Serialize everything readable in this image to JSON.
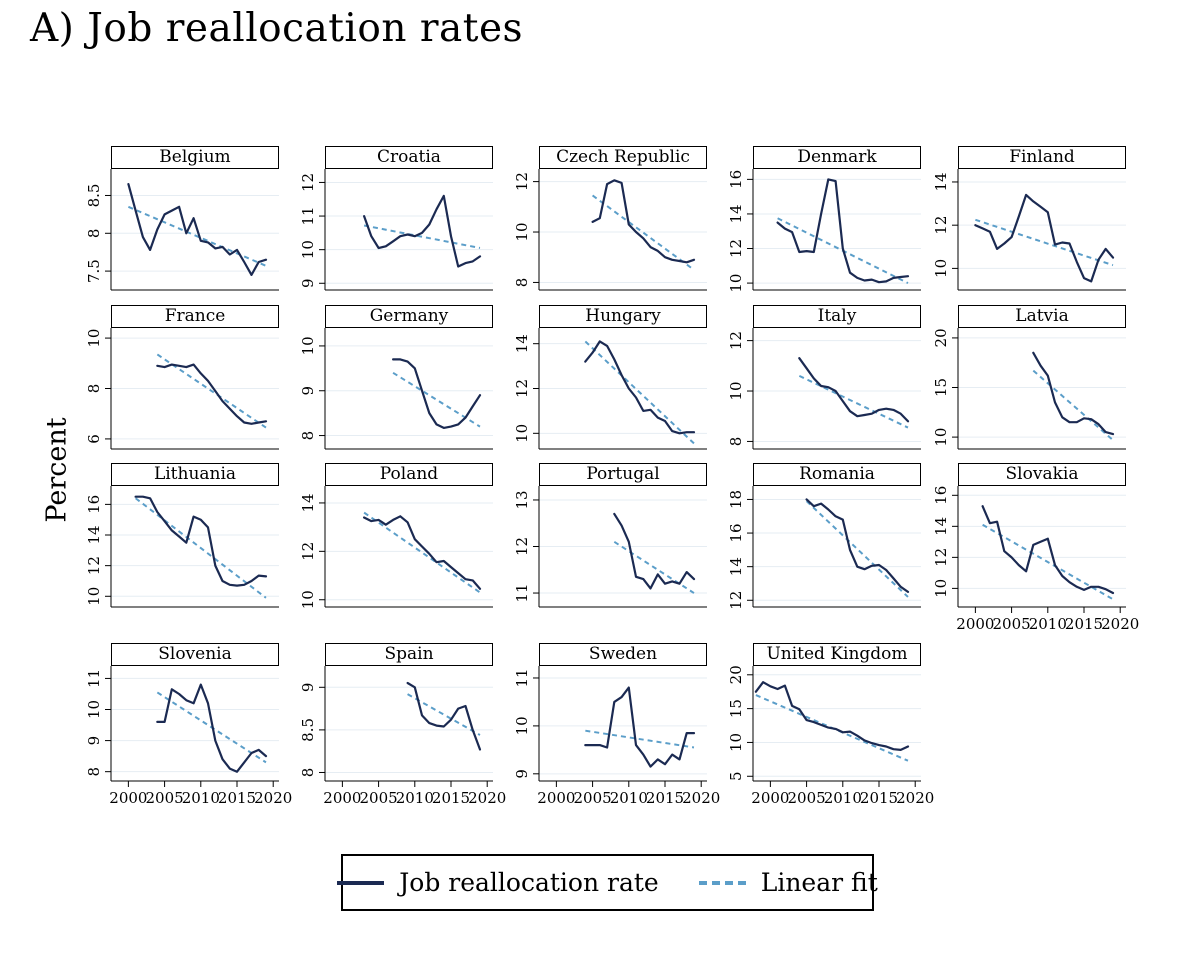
{
  "figure": {
    "title": "A) Job reallocation rates",
    "y_axis_label": "Percent"
  },
  "legend": {
    "items": [
      {
        "label": "Job reallocation rate",
        "style": "solid",
        "color": "#1b2a52"
      },
      {
        "label": "Linear fit",
        "style": "dashed",
        "color": "#5b9ec9"
      }
    ]
  },
  "colors": {
    "series": "#1b2a52",
    "trend": "#5b9ec9",
    "grid": "#e6edf3",
    "axis": "#000000"
  },
  "axes": {
    "x_ticks": [
      2000,
      2005,
      2010,
      2015,
      2020
    ],
    "x_range": [
      1997.6,
      2020.8
    ]
  },
  "chart_data": [
    {
      "type": "line",
      "title": "Belgium",
      "start_year": 2000,
      "yticks": [
        7.5,
        8,
        8.5
      ],
      "ylim": [
        7.25,
        8.85
      ],
      "x_axis_labels": false,
      "values": [
        8.65,
        8.3,
        7.95,
        7.78,
        8.05,
        8.25,
        8.3,
        8.35,
        8.0,
        8.2,
        7.9,
        7.88,
        7.8,
        7.82,
        7.72,
        7.78,
        7.62,
        7.45,
        7.62,
        7.65
      ],
      "trend": [
        8.35,
        7.57
      ]
    },
    {
      "type": "line",
      "title": "Croatia",
      "start_year": 2003,
      "yticks": [
        9,
        10,
        11,
        12
      ],
      "ylim": [
        8.8,
        12.4
      ],
      "x_axis_labels": false,
      "values": [
        11.0,
        10.4,
        10.05,
        10.1,
        10.25,
        10.4,
        10.45,
        10.4,
        10.5,
        10.75,
        11.2,
        11.6,
        10.4,
        9.5,
        9.6,
        9.65,
        9.8
      ],
      "trend": [
        10.72,
        10.05
      ]
    },
    {
      "type": "line",
      "title": "Czech Republic",
      "start_year": 2005,
      "yticks": [
        8,
        10,
        12
      ],
      "ylim": [
        7.7,
        12.5
      ],
      "x_axis_labels": false,
      "values": [
        10.4,
        10.55,
        11.9,
        12.05,
        11.95,
        10.3,
        10.0,
        9.75,
        9.4,
        9.25,
        9.0,
        8.9,
        8.85,
        8.8,
        8.9
      ],
      "trend": [
        11.45,
        8.5
      ]
    },
    {
      "type": "line",
      "title": "Denmark",
      "start_year": 2001,
      "yticks": [
        10,
        12,
        14,
        16
      ],
      "ylim": [
        9.6,
        16.6
      ],
      "x_axis_labels": false,
      "values": [
        13.5,
        13.15,
        12.95,
        11.8,
        11.85,
        11.8,
        14.0,
        16.0,
        15.9,
        12.0,
        10.6,
        10.3,
        10.15,
        10.2,
        10.05,
        10.1,
        10.3,
        10.35,
        10.4
      ],
      "trend": [
        13.75,
        10.0
      ]
    },
    {
      "type": "line",
      "title": "Finland",
      "start_year": 2000,
      "yticks": [
        10,
        12,
        14
      ],
      "ylim": [
        9.0,
        14.6
      ],
      "x_axis_labels": false,
      "values": [
        12.0,
        11.85,
        11.7,
        10.9,
        11.15,
        11.45,
        12.4,
        13.4,
        13.1,
        12.85,
        12.6,
        11.1,
        11.2,
        11.15,
        10.3,
        9.55,
        9.4,
        10.4,
        10.9,
        10.5
      ],
      "trend": [
        12.25,
        10.15
      ]
    },
    {
      "type": "line",
      "title": "France",
      "start_year": 2004,
      "yticks": [
        6,
        8,
        10
      ],
      "ylim": [
        5.6,
        10.4
      ],
      "x_axis_labels": false,
      "values": [
        8.9,
        8.85,
        8.95,
        8.9,
        8.85,
        8.95,
        8.6,
        8.3,
        7.9,
        7.5,
        7.2,
        6.9,
        6.65,
        6.6,
        6.65,
        6.7
      ],
      "trend": [
        9.35,
        6.45
      ]
    },
    {
      "type": "line",
      "title": "Germany",
      "start_year": 2007,
      "yticks": [
        8,
        9,
        10
      ],
      "ylim": [
        7.7,
        10.4
      ],
      "x_axis_labels": false,
      "values": [
        9.7,
        9.7,
        9.65,
        9.5,
        9.0,
        8.5,
        8.25,
        8.17,
        8.2,
        8.25,
        8.4,
        8.65,
        8.9
      ],
      "trend": [
        9.4,
        8.2
      ]
    },
    {
      "type": "line",
      "title": "Hungary",
      "start_year": 2004,
      "yticks": [
        10,
        12,
        14
      ],
      "ylim": [
        9.3,
        14.7
      ],
      "x_axis_labels": false,
      "values": [
        13.2,
        13.6,
        14.1,
        13.9,
        13.3,
        12.6,
        12.0,
        11.6,
        11.0,
        11.05,
        10.7,
        10.55,
        10.1,
        10.0,
        10.05,
        10.05
      ],
      "trend": [
        14.1,
        9.55
      ]
    },
    {
      "type": "line",
      "title": "Italy",
      "start_year": 2004,
      "yticks": [
        8,
        10,
        12
      ],
      "ylim": [
        7.7,
        12.5
      ],
      "x_axis_labels": false,
      "values": [
        11.3,
        10.9,
        10.5,
        10.2,
        10.15,
        10.0,
        9.6,
        9.2,
        9.0,
        9.05,
        9.1,
        9.25,
        9.3,
        9.25,
        9.1,
        8.8
      ],
      "trend": [
        10.6,
        8.55
      ]
    },
    {
      "type": "line",
      "title": "Latvia",
      "start_year": 2008,
      "yticks": [
        10,
        15,
        20
      ],
      "ylim": [
        8.8,
        21.0
      ],
      "x_axis_labels": false,
      "values": [
        18.5,
        17.2,
        16.2,
        13.5,
        12.0,
        11.5,
        11.5,
        11.9,
        11.8,
        11.3,
        10.5,
        10.3
      ],
      "trend": [
        16.7,
        9.7
      ]
    },
    {
      "type": "line",
      "title": "Lithuania",
      "start_year": 2001,
      "yticks": [
        10,
        12,
        14,
        16
      ],
      "ylim": [
        9.3,
        17.2
      ],
      "x_axis_labels": false,
      "values": [
        16.5,
        16.5,
        16.4,
        15.5,
        14.9,
        14.3,
        13.9,
        13.5,
        15.2,
        15.0,
        14.5,
        12.0,
        11.0,
        10.75,
        10.7,
        10.75,
        11.0,
        11.35,
        11.3
      ],
      "trend": [
        16.4,
        9.9
      ]
    },
    {
      "type": "line",
      "title": "Poland",
      "start_year": 2003,
      "yticks": [
        10,
        12,
        14
      ],
      "ylim": [
        9.7,
        14.7
      ],
      "x_axis_labels": false,
      "values": [
        13.4,
        13.25,
        13.3,
        13.1,
        13.3,
        13.45,
        13.2,
        12.5,
        12.2,
        11.9,
        11.55,
        11.6,
        11.35,
        11.1,
        10.85,
        10.8,
        10.45
      ],
      "trend": [
        13.6,
        10.3
      ]
    },
    {
      "type": "line",
      "title": "Portugal",
      "start_year": 2008,
      "yticks": [
        11,
        12,
        13
      ],
      "ylim": [
        10.7,
        13.3
      ],
      "x_axis_labels": false,
      "values": [
        12.7,
        12.45,
        12.1,
        11.35,
        11.3,
        11.1,
        11.4,
        11.2,
        11.25,
        11.2,
        11.45,
        11.3
      ],
      "trend": [
        12.1,
        11.0
      ]
    },
    {
      "type": "line",
      "title": "Romania",
      "start_year": 2005,
      "yticks": [
        12,
        14,
        16,
        18
      ],
      "ylim": [
        11.6,
        18.8
      ],
      "x_axis_labels": false,
      "values": [
        18.0,
        17.6,
        17.75,
        17.4,
        17.0,
        16.8,
        15.0,
        14.0,
        13.85,
        14.05,
        14.1,
        13.8,
        13.3,
        12.8,
        12.5
      ],
      "trend": [
        17.9,
        12.2
      ]
    },
    {
      "type": "line",
      "title": "Slovakia",
      "start_year": 2001,
      "yticks": [
        10,
        12,
        14,
        16
      ],
      "ylim": [
        8.8,
        16.6
      ],
      "x_axis_labels": true,
      "values": [
        15.3,
        14.2,
        14.3,
        12.4,
        12.0,
        11.5,
        11.1,
        12.8,
        13.0,
        13.2,
        11.5,
        10.8,
        10.4,
        10.1,
        9.9,
        10.1,
        10.1,
        9.95,
        9.7
      ],
      "trend": [
        14.1,
        9.3
      ]
    },
    {
      "type": "line",
      "title": "Slovenia",
      "start_year": 2004,
      "yticks": [
        8,
        9,
        10,
        11
      ],
      "ylim": [
        7.7,
        11.4
      ],
      "x_axis_labels": true,
      "values": [
        9.6,
        9.6,
        10.65,
        10.5,
        10.3,
        10.2,
        10.8,
        10.2,
        9.0,
        8.4,
        8.1,
        8.0,
        8.3,
        8.6,
        8.7,
        8.5
      ],
      "trend": [
        10.55,
        8.3
      ]
    },
    {
      "type": "line",
      "title": "Spain",
      "start_year": 2009,
      "yticks": [
        8,
        8.5,
        9
      ],
      "ylim": [
        7.9,
        9.25
      ],
      "x_axis_labels": true,
      "values": [
        9.05,
        9.0,
        8.67,
        8.58,
        8.55,
        8.54,
        8.62,
        8.75,
        8.78,
        8.5,
        8.27
      ],
      "trend": [
        8.92,
        8.44
      ]
    },
    {
      "type": "line",
      "title": "Sweden",
      "start_year": 2004,
      "yticks": [
        9,
        10,
        11
      ],
      "ylim": [
        8.85,
        11.25
      ],
      "x_axis_labels": true,
      "values": [
        9.6,
        9.6,
        9.6,
        9.55,
        10.5,
        10.6,
        10.8,
        9.6,
        9.4,
        9.15,
        9.3,
        9.2,
        9.4,
        9.3,
        9.85,
        9.85
      ],
      "trend": [
        9.9,
        9.55
      ]
    },
    {
      "type": "line",
      "title": "United Kingdom",
      "start_year": 1998,
      "yticks": [
        5,
        10,
        15,
        20
      ],
      "ylim": [
        4.3,
        21.3
      ],
      "x_axis_labels": true,
      "values": [
        17.5,
        18.9,
        18.3,
        17.9,
        18.4,
        15.4,
        14.9,
        13.3,
        13.0,
        12.6,
        12.2,
        12.0,
        11.5,
        11.6,
        11.0,
        10.3,
        9.9,
        9.6,
        9.4,
        9.0,
        8.9,
        9.4
      ],
      "trend": [
        17.0,
        7.3
      ]
    }
  ]
}
